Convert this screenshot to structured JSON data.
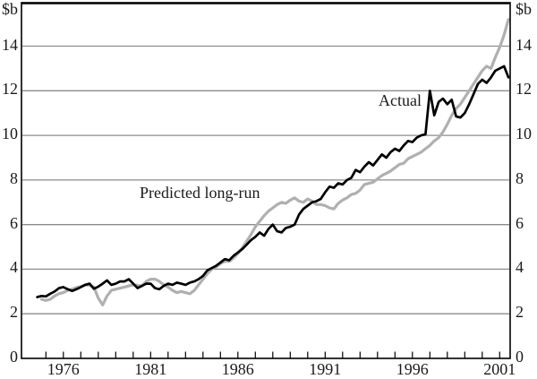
{
  "chart_data": {
    "type": "line",
    "title": "",
    "xlabel": "",
    "ylabel": "$b",
    "grid": true,
    "legend_position": "inline-annotations",
    "x_axis": {
      "labels": [
        "1976",
        "1981",
        "1986",
        "1991",
        "1996",
        "2001"
      ],
      "label_years": [
        1976,
        1981,
        1986,
        1991,
        1996,
        2001
      ],
      "tick_year_start": 1975,
      "tick_year_end": 2001,
      "xlim": [
        1973.6,
        2001.6
      ]
    },
    "y_axis": {
      "unit_left": "$b",
      "unit_right": "$b",
      "ticks": [
        0,
        2,
        4,
        6,
        8,
        10,
        12,
        14
      ],
      "gridlines": [
        2,
        4,
        6,
        8,
        10,
        12,
        14
      ],
      "ylim": [
        0,
        15.95
      ]
    },
    "annotations": [
      {
        "text": "Actual",
        "series": "Actual"
      },
      {
        "text": "Predicted long-run",
        "series": "Predicted long-run"
      }
    ],
    "colors": {
      "actual": "#000000",
      "predicted": "#b0b0b0",
      "grid": "#8c8c8c",
      "frame": "#000000",
      "background": "#ffffff"
    },
    "series": [
      {
        "name": "Actual",
        "color": "#000000",
        "stroke_width": 2.7,
        "x_start": 1974.5,
        "x_step": 0.25,
        "values": [
          2.75,
          2.8,
          2.78,
          2.9,
          3.0,
          3.15,
          3.2,
          3.1,
          3.02,
          3.1,
          3.2,
          3.3,
          3.35,
          3.12,
          3.22,
          3.35,
          3.5,
          3.3,
          3.35,
          3.45,
          3.45,
          3.55,
          3.35,
          3.15,
          3.25,
          3.35,
          3.35,
          3.15,
          3.1,
          3.25,
          3.35,
          3.3,
          3.4,
          3.35,
          3.3,
          3.4,
          3.45,
          3.55,
          3.7,
          3.95,
          4.05,
          4.15,
          4.3,
          4.45,
          4.4,
          4.6,
          4.75,
          4.9,
          5.1,
          5.3,
          5.45,
          5.65,
          5.5,
          5.8,
          6.0,
          5.7,
          5.65,
          5.85,
          5.9,
          6.0,
          6.45,
          6.7,
          6.85,
          7.0,
          7.05,
          7.15,
          7.45,
          7.7,
          7.65,
          7.85,
          7.8,
          8.0,
          8.1,
          8.45,
          8.35,
          8.6,
          8.8,
          8.65,
          8.9,
          9.15,
          9.0,
          9.25,
          9.4,
          9.3,
          9.55,
          9.75,
          9.7,
          9.9,
          10.0,
          10.05,
          12.0,
          10.9,
          11.5,
          11.65,
          11.4,
          11.6,
          10.85,
          10.8,
          11.0,
          11.4,
          11.85,
          12.3,
          12.5,
          12.35,
          12.6,
          12.9,
          13.0,
          13.1,
          12.6
        ]
      },
      {
        "name": "Predicted long-run",
        "color": "#b0b0b0",
        "stroke_width": 3.2,
        "x_start": 1974.75,
        "x_step": 0.25,
        "values": [
          2.65,
          2.6,
          2.65,
          2.8,
          2.9,
          2.95,
          3.05,
          3.1,
          3.18,
          3.22,
          3.3,
          3.28,
          3.2,
          2.7,
          2.4,
          2.8,
          3.05,
          3.1,
          3.15,
          3.2,
          3.25,
          3.3,
          3.28,
          3.25,
          3.45,
          3.55,
          3.55,
          3.45,
          3.3,
          3.2,
          3.05,
          2.95,
          3.0,
          2.95,
          2.9,
          3.05,
          3.3,
          3.55,
          3.8,
          4.0,
          4.1,
          4.25,
          4.35,
          4.35,
          4.5,
          4.7,
          4.95,
          5.25,
          5.55,
          5.9,
          6.15,
          6.4,
          6.6,
          6.75,
          6.9,
          7.0,
          6.95,
          7.1,
          7.2,
          7.05,
          7.0,
          7.15,
          7.05,
          6.9,
          6.9,
          6.85,
          6.75,
          6.7,
          6.95,
          7.1,
          7.2,
          7.35,
          7.4,
          7.55,
          7.8,
          7.85,
          7.9,
          8.05,
          8.2,
          8.3,
          8.4,
          8.55,
          8.7,
          8.75,
          8.95,
          9.05,
          9.15,
          9.25,
          9.4,
          9.55,
          9.75,
          9.9,
          10.15,
          10.5,
          10.9,
          11.2,
          11.4,
          11.7,
          12.0,
          12.3,
          12.6,
          12.9,
          13.1,
          13.0,
          13.5,
          13.95,
          14.5,
          15.2
        ]
      }
    ]
  }
}
